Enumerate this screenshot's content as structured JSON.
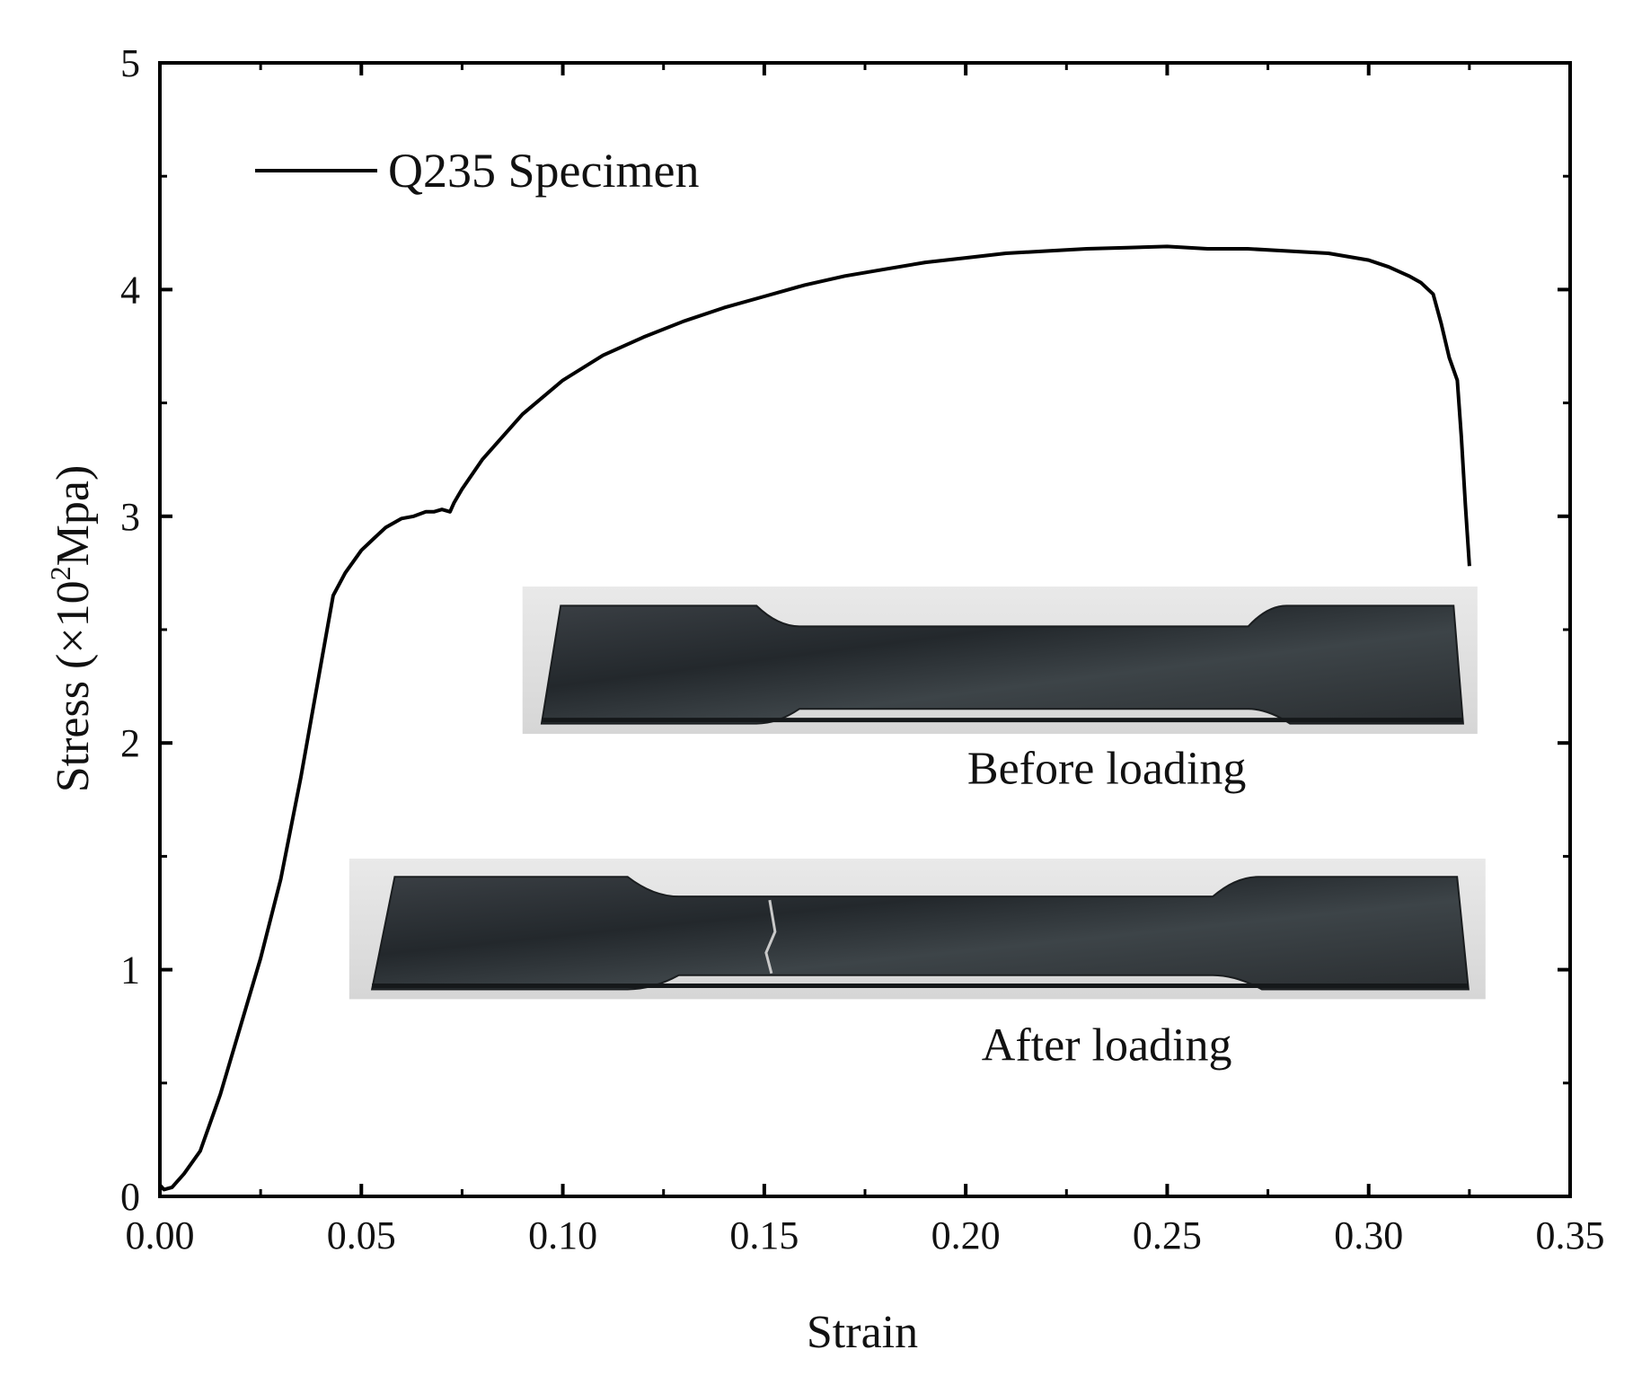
{
  "chart_data": {
    "type": "line",
    "title": "",
    "xlabel": "Strain",
    "ylabel_prefix": "Stress (×10",
    "ylabel_sup": "2",
    "ylabel_suffix": "Mpa)",
    "xlim": [
      0,
      0.35
    ],
    "ylim": [
      0,
      5
    ],
    "x_ticks": [
      0,
      0.05,
      0.1,
      0.15,
      0.2,
      0.25,
      0.3,
      0.35
    ],
    "x_tick_labels": [
      "0.00",
      "0.05",
      "0.10",
      "0.15",
      "0.20",
      "0.25",
      "0.30",
      "0.35"
    ],
    "y_ticks": [
      0,
      1,
      2,
      3,
      4,
      5
    ],
    "y_tick_labels": [
      "0",
      "1",
      "2",
      "3",
      "4",
      "5"
    ],
    "grid": false,
    "legend": {
      "position": "top-left",
      "entries": [
        "Q235 Specimen"
      ]
    },
    "series": [
      {
        "name": "Q235 Specimen",
        "color": "#000000",
        "x": [
          0.0,
          0.001,
          0.003,
          0.006,
          0.01,
          0.015,
          0.02,
          0.025,
          0.03,
          0.035,
          0.04,
          0.043,
          0.046,
          0.048,
          0.05,
          0.053,
          0.056,
          0.06,
          0.063,
          0.066,
          0.068,
          0.07,
          0.072,
          0.073,
          0.075,
          0.08,
          0.09,
          0.1,
          0.11,
          0.12,
          0.13,
          0.14,
          0.15,
          0.16,
          0.17,
          0.18,
          0.19,
          0.2,
          0.21,
          0.22,
          0.23,
          0.24,
          0.25,
          0.26,
          0.27,
          0.28,
          0.29,
          0.3,
          0.305,
          0.31,
          0.313,
          0.316,
          0.318,
          0.32,
          0.322,
          0.323,
          0.324,
          0.325
        ],
        "y": [
          0.05,
          0.03,
          0.04,
          0.1,
          0.2,
          0.45,
          0.75,
          1.05,
          1.4,
          1.85,
          2.35,
          2.65,
          2.75,
          2.8,
          2.85,
          2.9,
          2.95,
          2.99,
          3.0,
          3.02,
          3.02,
          3.03,
          3.02,
          3.06,
          3.12,
          3.25,
          3.45,
          3.6,
          3.71,
          3.79,
          3.86,
          3.92,
          3.97,
          4.02,
          4.06,
          4.09,
          4.12,
          4.14,
          4.16,
          4.17,
          4.18,
          4.185,
          4.19,
          4.18,
          4.18,
          4.17,
          4.16,
          4.13,
          4.1,
          4.06,
          4.03,
          3.98,
          3.85,
          3.7,
          3.6,
          3.35,
          3.05,
          2.78
        ]
      }
    ],
    "annotations": [
      {
        "text": "Before loading",
        "x": 0.235,
        "y": 1.82
      },
      {
        "text": "After loading",
        "x": 0.235,
        "y": 0.6
      }
    ],
    "insets": [
      {
        "name": "before-loading-photo",
        "caption": "Before loading",
        "x0": 0.09,
        "x1": 0.327,
        "y0": 2.04,
        "y1": 2.69,
        "fractured": false
      },
      {
        "name": "after-loading-photo",
        "caption": "After loading",
        "x0": 0.047,
        "x1": 0.329,
        "y0": 0.87,
        "y1": 1.49,
        "fractured": true
      }
    ]
  }
}
